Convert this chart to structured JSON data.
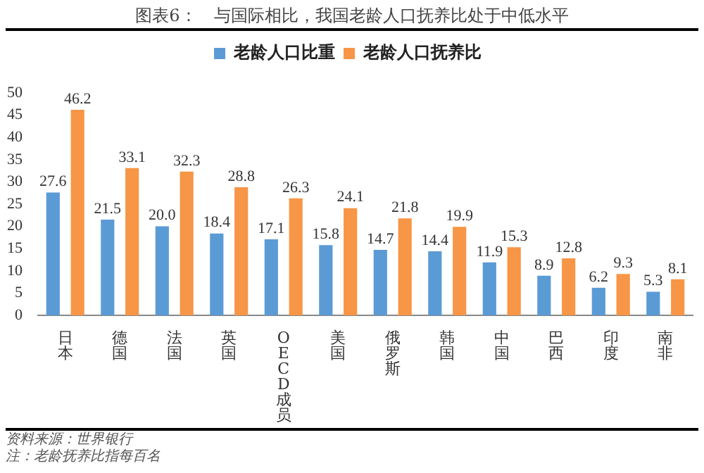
{
  "chart_data": {
    "type": "bar",
    "title": "图表6：　与国际相比，我国老龄人口抚养比处于中低水平",
    "categories": [
      "日本",
      "德国",
      "法国",
      "英国",
      "OECD成员",
      "美国",
      "俄罗斯",
      "韩国",
      "中国",
      "巴西",
      "印度",
      "南非"
    ],
    "series": [
      {
        "name": "老龄人口比重",
        "color": "#5b9bd5",
        "values": [
          27.6,
          21.5,
          20.0,
          18.4,
          17.1,
          15.8,
          14.7,
          14.4,
          11.9,
          8.9,
          6.2,
          5.3
        ],
        "value_labels": [
          "27.6",
          "21.5",
          "20.0",
          "18.4",
          "17.1",
          "15.8",
          "14.7",
          "14.4",
          "11.9",
          "8.9",
          "6.2",
          "5.3"
        ]
      },
      {
        "name": "老龄人口抚养比",
        "color": "#f79646",
        "values": [
          46.2,
          33.1,
          32.3,
          28.8,
          26.3,
          24.1,
          21.8,
          19.9,
          15.3,
          12.8,
          9.3,
          8.1
        ],
        "value_labels": [
          "46.2",
          "33.1",
          "32.3",
          "28.8",
          "26.3",
          "24.1",
          "21.8",
          "19.9",
          "15.3",
          "12.8",
          "9.3",
          "8.1"
        ]
      }
    ],
    "ylim": [
      0,
      50
    ],
    "yticks": [
      0,
      5,
      10,
      15,
      20,
      25,
      30,
      35,
      40,
      45,
      50
    ],
    "grid": false,
    "legend": "top",
    "annotations": [
      "资料来源：世界银行",
      "注：老龄抚养比指每百名"
    ]
  }
}
